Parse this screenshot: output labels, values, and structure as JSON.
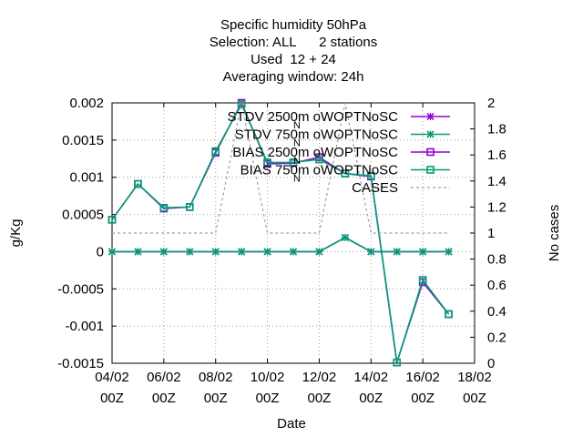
{
  "chart_data": {
    "type": "line",
    "title_lines": [
      "Specific humidity 50hPa",
      "Selection: ALL      2 stations",
      "Used  12 + 24",
      "Averaging window: 24h"
    ],
    "xlabel": "Date",
    "ylabel": "g/Kg",
    "y2label": "No cases",
    "x_ticks": [
      {
        "day": 4,
        "line1": "04/02",
        "line2": "00Z"
      },
      {
        "day": 6,
        "line1": "06/02",
        "line2": "00Z"
      },
      {
        "day": 8,
        "line1": "08/02",
        "line2": "00Z"
      },
      {
        "day": 10,
        "line1": "10/02",
        "line2": "00Z"
      },
      {
        "day": 12,
        "line1": "12/02",
        "line2": "00Z"
      },
      {
        "day": 14,
        "line1": "14/02",
        "line2": "00Z"
      },
      {
        "day": 16,
        "line1": "16/02",
        "line2": "00Z"
      },
      {
        "day": 18,
        "line1": "18/02",
        "line2": "00Z"
      }
    ],
    "xlim": [
      4,
      18
    ],
    "ylim": [
      -0.0015,
      0.002
    ],
    "y_ticks": [
      "0.002",
      "0.0015",
      "0.001",
      "0.0005",
      "0",
      "-0.0005",
      "-0.001",
      "-0.0015"
    ],
    "y2lim": [
      0,
      2
    ],
    "y2_ticks": [
      "2",
      "1.8",
      "1.6",
      "1.4",
      "1.2",
      "1",
      "0.8",
      "0.6",
      "0.4",
      "0.2",
      "0"
    ],
    "grid": true,
    "legend_position": "top-right",
    "x": [
      4,
      5,
      6,
      7,
      8,
      9,
      10,
      11,
      12,
      13,
      14,
      15,
      16,
      17
    ],
    "series": [
      {
        "name": "STDV 2500m oWOPTNoSC",
        "name_subscript": "N",
        "axis": "y1",
        "color": "#9400d3",
        "marker": "x",
        "dash": "solid",
        "values": [
          0,
          0,
          0,
          0,
          0,
          0,
          0,
          0,
          0,
          0.00019,
          0,
          0,
          0,
          0
        ]
      },
      {
        "name": "STDV 750m oWOPTNoSC",
        "name_subscript": "N",
        "axis": "y1",
        "color": "#009e73",
        "marker": "x",
        "dash": "solid",
        "values": [
          0,
          0,
          0,
          0,
          0,
          0,
          0,
          0,
          0,
          0.00019,
          0,
          0,
          0,
          0
        ]
      },
      {
        "name": "BIAS 2500m oWOPTNoSC",
        "name_subscript": "N",
        "axis": "y1",
        "color": "#9400d3",
        "marker": "square",
        "dash": "solid",
        "values": [
          0.00043,
          0.00091,
          0.00058,
          0.0006,
          0.00133,
          0.002,
          0.00118,
          0.00119,
          0.00127,
          0.00105,
          0.00101,
          -0.00149,
          -0.00041,
          -0.00084
        ]
      },
      {
        "name": "BIAS 750m oWOPTNoSC",
        "name_subscript": "N",
        "axis": "y1",
        "color": "#009e73",
        "marker": "square",
        "dash": "solid",
        "values": [
          0.00043,
          0.00091,
          0.00059,
          0.0006,
          0.00135,
          0.00198,
          0.0012,
          0.0012,
          0.00124,
          0.00105,
          0.00102,
          -0.00149,
          -0.00038,
          -0.00084
        ]
      },
      {
        "name": "CASES",
        "axis": "y2",
        "color": "#a0a0a0",
        "marker": "none",
        "dash": "dashed",
        "values": [
          1,
          1,
          1,
          1,
          1,
          2,
          1,
          1,
          1,
          2,
          1,
          1,
          1,
          1
        ]
      }
    ]
  }
}
